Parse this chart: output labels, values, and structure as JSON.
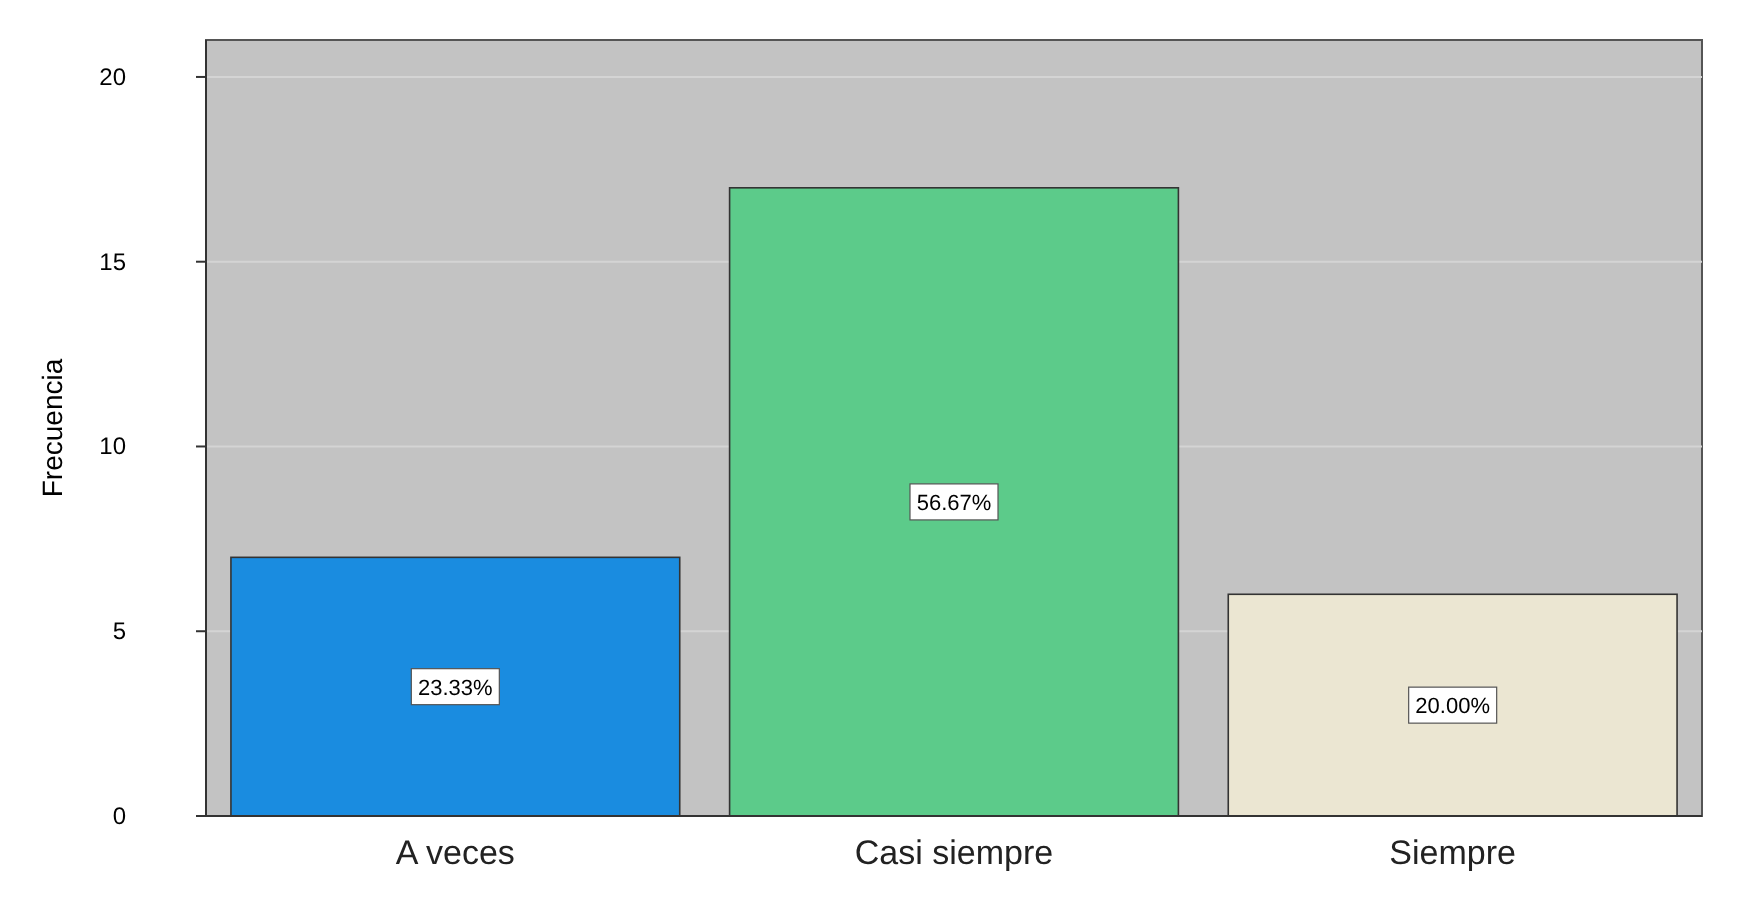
{
  "chart_data": {
    "type": "bar",
    "ylabel": "Frecuencia",
    "categories": [
      "A veces",
      "Casi siempre",
      "Siempre"
    ],
    "values": [
      7,
      17,
      6
    ],
    "colors": [
      "#1a8ce0",
      "#5ccb8a",
      "#ebe6d2"
    ],
    "annotations": [
      {
        "text": "23.33%",
        "x": "A veces",
        "y": 3.5
      },
      {
        "text": "56.67%",
        "x": "Casi siempre",
        "y": 8.5
      },
      {
        "text": "20.00%",
        "x": "Siempre",
        "y": 3
      }
    ],
    "ylim": [
      0,
      21
    ],
    "yticks": [
      0,
      5,
      10,
      15,
      20
    ],
    "grid": "y"
  }
}
